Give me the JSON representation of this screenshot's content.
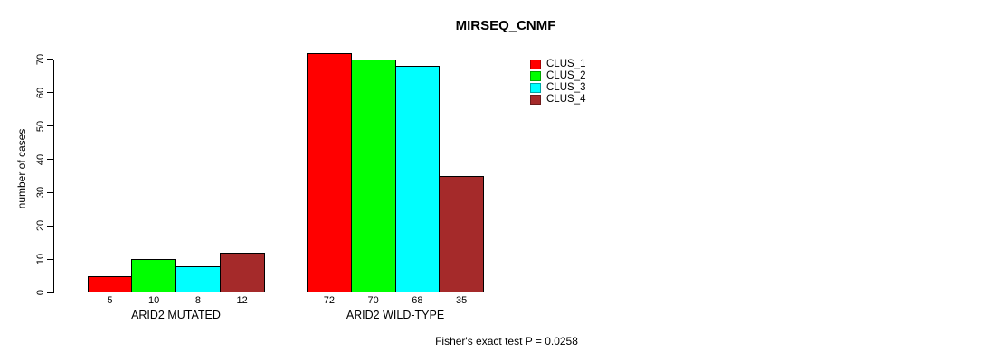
{
  "title": "MIRSEQ_CNMF",
  "footer": "Fisher's exact test P = 0.0258",
  "chart_data": {
    "type": "bar",
    "title": "MIRSEQ_CNMF",
    "xlabel": "",
    "ylabel": "number of cases",
    "ylim": [
      0,
      75
    ],
    "yticks": [
      0,
      10,
      20,
      30,
      40,
      50,
      60,
      70
    ],
    "grid": false,
    "legend_position": "right-top",
    "categories": [
      "ARID2 MUTATED",
      "ARID2 WILD-TYPE"
    ],
    "series": [
      {
        "name": "CLUS_1",
        "color": "#FF0000",
        "values": [
          5,
          72
        ]
      },
      {
        "name": "CLUS_2",
        "color": "#00FF00",
        "values": [
          10,
          70
        ]
      },
      {
        "name": "CLUS_3",
        "color": "#00FFFF",
        "values": [
          8,
          68
        ]
      },
      {
        "name": "CLUS_4",
        "color": "#A52A2A",
        "values": [
          12,
          35
        ]
      }
    ],
    "groups": [
      {
        "label": "ARID2 MUTATED",
        "values": [
          5,
          10,
          8,
          12
        ]
      },
      {
        "label": "ARID2 WILD-TYPE",
        "values": [
          72,
          70,
          68,
          35
        ]
      }
    ],
    "bar_value_labels": [
      [
        5,
        10,
        8,
        12
      ],
      [
        72,
        70,
        68,
        35
      ]
    ],
    "annotation": "Fisher's exact test P = 0.0258",
    "bar_border_color": "#000000",
    "background_color": "#FFFFFF"
  }
}
